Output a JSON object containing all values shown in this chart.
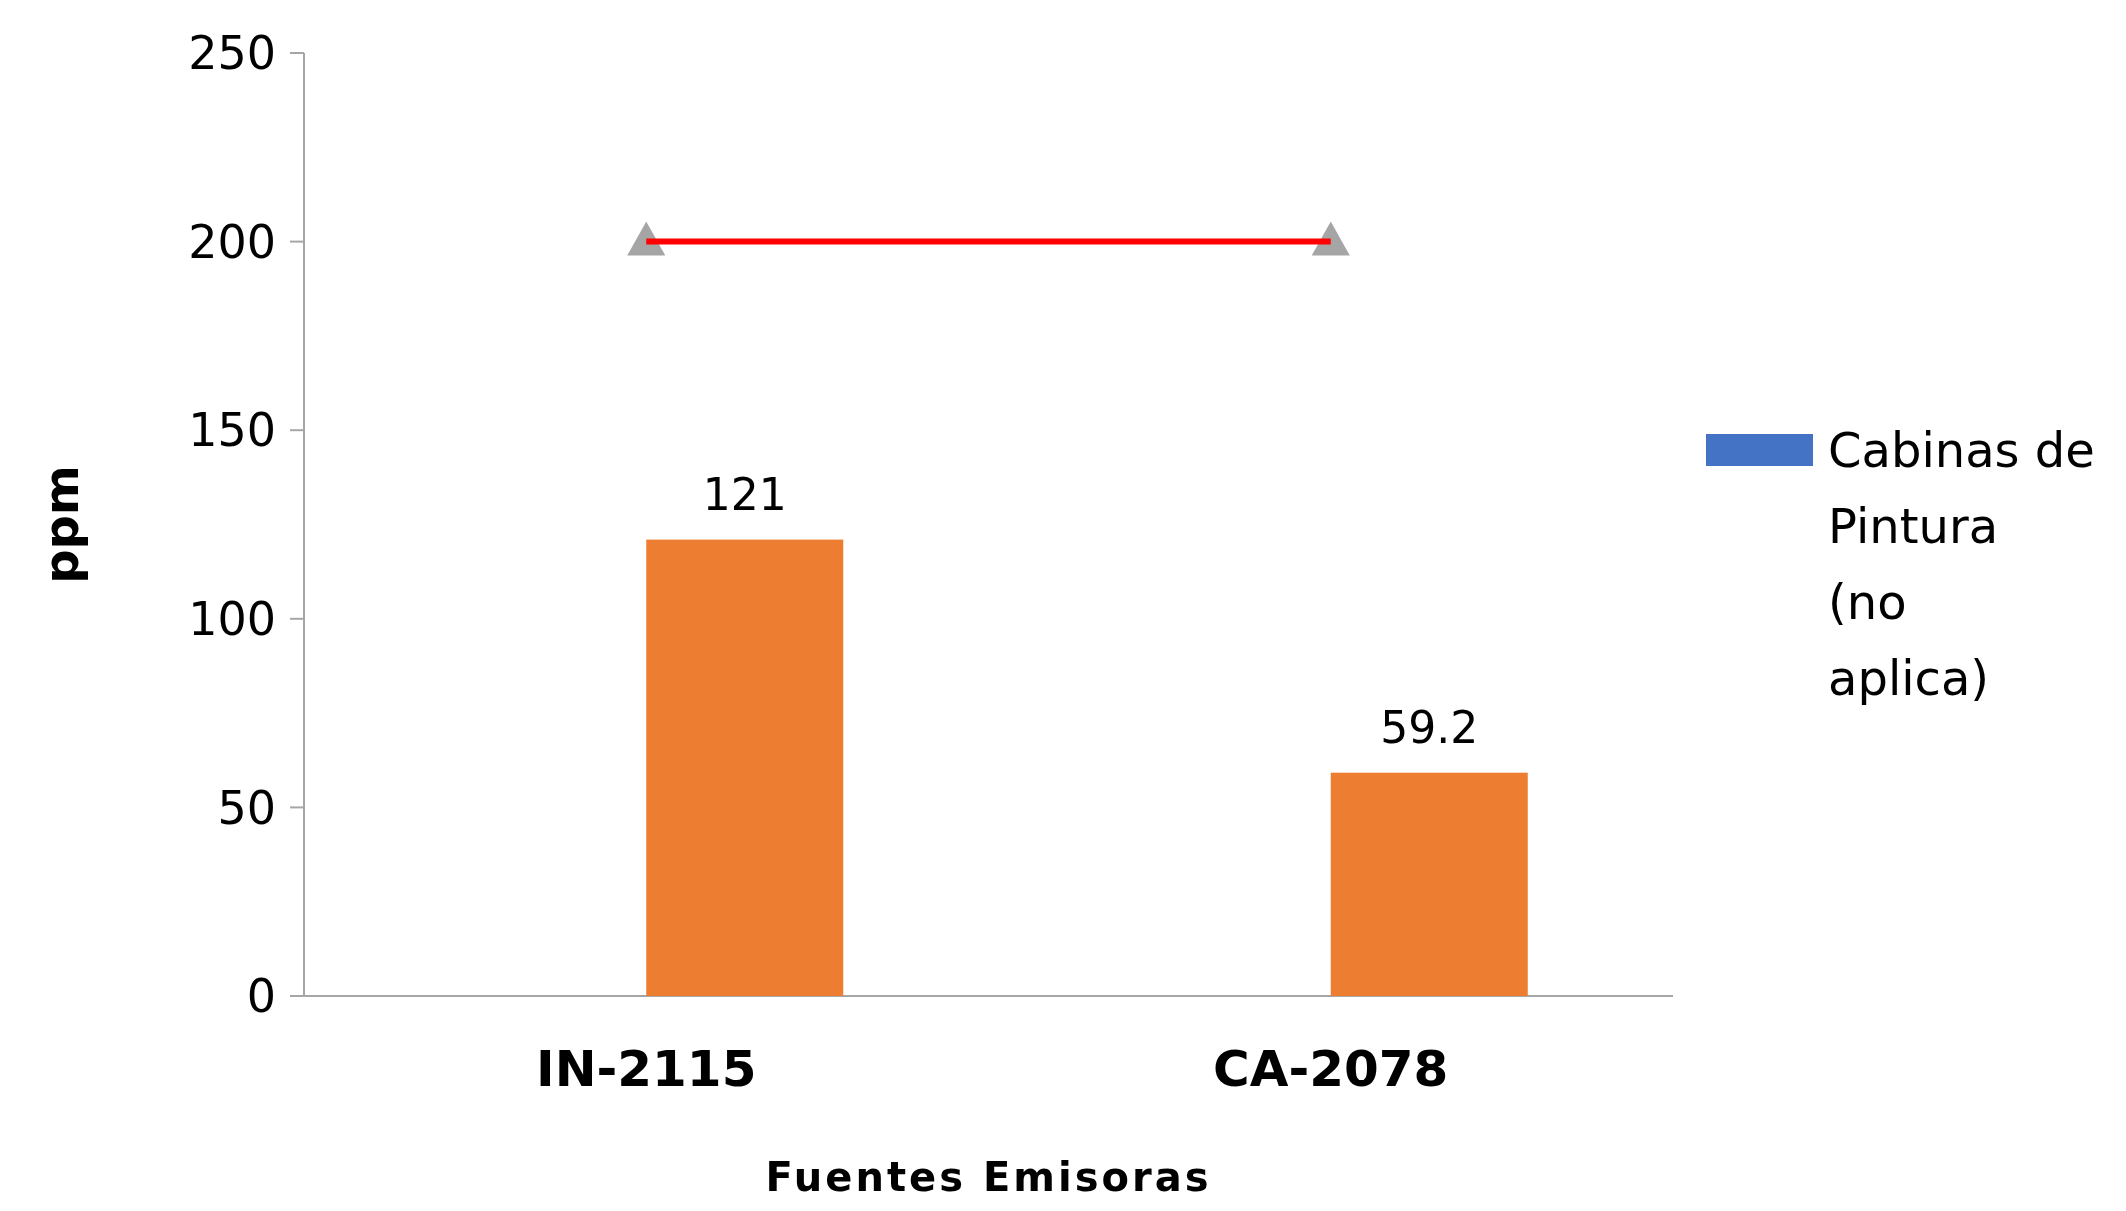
{
  "chart_data": {
    "type": "bar",
    "xlabel": "Fuentes Emisoras",
    "ylabel": "ppm",
    "categories": [
      "IN-2115",
      "CA-2078"
    ],
    "series": [
      {
        "name": "Cabinas de Pintura (no aplica)",
        "color": "#4472c4",
        "values": [
          null,
          null
        ]
      },
      {
        "color": "#ed7d31",
        "values": [
          121,
          59.2
        ],
        "value_labels": [
          "121",
          "59.2"
        ]
      },
      {
        "type": "line",
        "color": "#ff0000",
        "values": [
          200,
          200
        ],
        "marker": "triangle"
      }
    ],
    "ylim": [
      0,
      250
    ],
    "yticks": [
      0,
      50,
      100,
      150,
      200,
      250
    ],
    "grid": false,
    "legend": "right"
  }
}
